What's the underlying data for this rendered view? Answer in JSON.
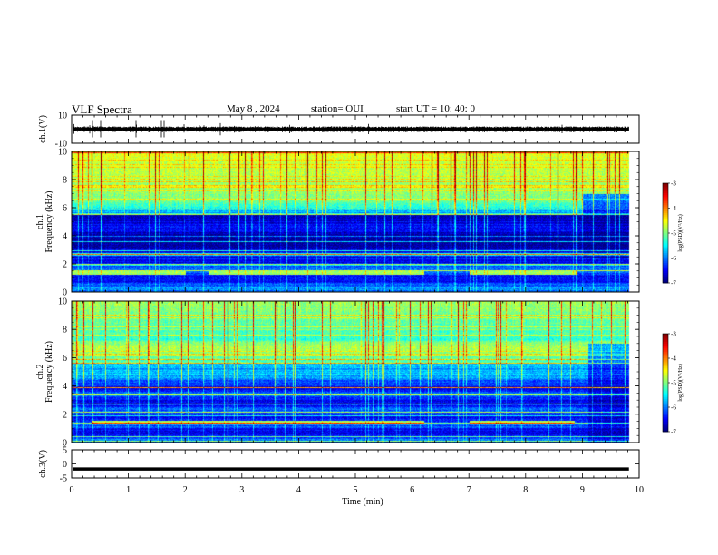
{
  "header": {
    "title": "VLF Spectra",
    "date": "May 8  , 2024",
    "station": "station= OUI",
    "start": "start  UT  =   10: 40: 0"
  },
  "chart_data": [
    {
      "type": "line",
      "panel": "ch1-waveform",
      "ylabel": "ch.1(V)",
      "ylim": [
        -10,
        10
      ],
      "yticks": [
        "10",
        "-10"
      ],
      "xlim": [
        0,
        10
      ],
      "trace_amplitude": 1.5,
      "trace_end": 9.82
    },
    {
      "type": "heatmap",
      "panel": "ch1-spectrogram",
      "ylabel": [
        "ch.1",
        "Frequency  (kHz)"
      ],
      "ylim": [
        0,
        10
      ],
      "yticks": [
        "0",
        "2",
        "4",
        "6",
        "8",
        "10"
      ],
      "xlim": [
        0,
        10
      ],
      "colorbar": {
        "label": "log(PSD)(V²/Hz)",
        "range": [
          -7,
          -3
        ],
        "ticks": [
          "-3",
          "-4",
          "-5",
          "-6",
          "-7"
        ]
      }
    },
    {
      "type": "heatmap",
      "panel": "ch2-spectrogram",
      "ylabel": [
        "ch.2",
        "Frequency  (kHz)"
      ],
      "ylim": [
        0,
        10
      ],
      "yticks": [
        "0",
        "2",
        "4",
        "6",
        "8",
        "10"
      ],
      "xlim": [
        0,
        10
      ],
      "colorbar": {
        "label": "log(PSD)(V²/Hz)",
        "range": [
          -7,
          -3
        ],
        "ticks": [
          "-3",
          "-4",
          "-5",
          "-6",
          "-7"
        ]
      }
    },
    {
      "type": "line",
      "panel": "ch3-waveform",
      "ylabel": "ch.3(V)",
      "ylim": [
        -5,
        5
      ],
      "yticks": [
        "5",
        "0",
        "-5"
      ],
      "xlim": [
        0,
        10
      ],
      "level": -1.8,
      "trace_end": 9.82
    }
  ],
  "xaxis": {
    "label": "Time  (min)",
    "ticks": [
      "0",
      "1",
      "2",
      "3",
      "4",
      "5",
      "6",
      "7",
      "8",
      "9",
      "10"
    ]
  },
  "colors": {
    "trace": "#000000",
    "background": "#ffffff"
  }
}
